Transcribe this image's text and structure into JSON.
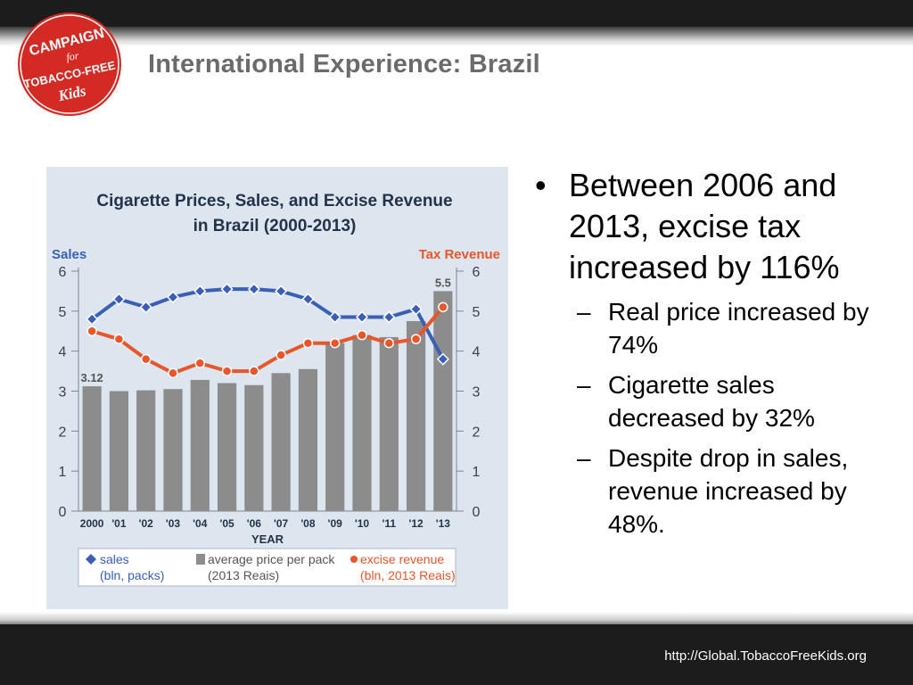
{
  "slide": {
    "title": "International Experience: Brazil",
    "logo_text": [
      "CAMPAIGN",
      "for",
      "TOBACCO-FREE",
      "Kids"
    ],
    "logo_color": "#d42a24",
    "footer_url": "http://Global.TobaccoFreeKids.org"
  },
  "bullets": {
    "main": "Between 2006 and 2013, excise tax increased by 116%",
    "subs": [
      "Real price increased by 74%",
      "Cigarette sales decreased by 32%",
      "Despite drop in sales, revenue increased by 48%."
    ]
  },
  "chart_data": {
    "type": "bar",
    "title": "Cigarette Prices, Sales, and Excise Revenue in Brazil (2000-2013)",
    "xlabel": "YEAR",
    "ylabel_left": "Sales",
    "ylabel_right": "Tax Revenue",
    "ylim": [
      0,
      6
    ],
    "yticks": [
      0,
      1,
      2,
      3,
      4,
      5,
      6
    ],
    "categories": [
      "2000",
      "'01",
      "'02",
      "'03",
      "'04",
      "'05",
      "'06",
      "'07",
      "'08",
      "'09",
      "'10",
      "'11",
      "'12",
      "'13"
    ],
    "grid": false,
    "legend_position": "bottom",
    "bar_series": {
      "name": "average price per pack",
      "unit": "(2013 Reais)",
      "color": "#8c8c8c",
      "values": [
        3.12,
        3.0,
        3.02,
        3.05,
        3.28,
        3.2,
        3.15,
        3.45,
        3.55,
        4.2,
        4.4,
        4.35,
        4.75,
        5.5
      ],
      "data_labels": [
        {
          "index": 0,
          "text": "3.12"
        },
        {
          "index": 13,
          "text": "5.5"
        }
      ]
    },
    "series": [
      {
        "name": "sales",
        "unit": "(bln, packs)",
        "marker": "diamond",
        "color": "#3a5fb5",
        "values": [
          4.8,
          5.3,
          5.1,
          5.35,
          5.5,
          5.55,
          5.55,
          5.5,
          5.3,
          4.85,
          4.85,
          4.85,
          5.05,
          3.8
        ]
      },
      {
        "name": "excise revenue",
        "unit": "(bln, 2013 Reais)",
        "marker": "circle",
        "color": "#e8562a",
        "values": [
          4.5,
          4.3,
          3.8,
          3.45,
          3.7,
          3.5,
          3.5,
          3.9,
          4.2,
          4.2,
          4.4,
          4.2,
          4.3,
          5.1
        ]
      }
    ]
  }
}
